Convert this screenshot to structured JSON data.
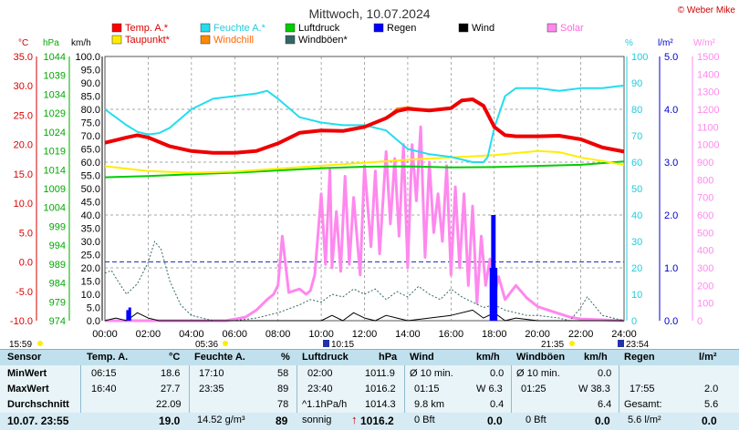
{
  "title": "Mittwoch, 10.07.2024",
  "copyright": "© Weber Mike",
  "legend": [
    {
      "label": "Temp. A.*",
      "color": "#ff0000"
    },
    {
      "label": "Feuchte A.*",
      "color": "#22ddee"
    },
    {
      "label": "Luftdruck",
      "color": "#00cc00"
    },
    {
      "label": "Regen",
      "color": "#0000ff"
    },
    {
      "label": "Wind",
      "color": "#000000"
    },
    {
      "label": "Solar",
      "color": "#ff88ee"
    },
    {
      "label": "Taupunkt*",
      "color": "#ffee00"
    },
    {
      "label": "Windchill",
      "color": "#ff8800"
    },
    {
      "label": "Windböen*",
      "color": "#336666"
    }
  ],
  "axis_units": {
    "temp": "°C",
    "pressure": "hPa",
    "wind": "km/h",
    "humidity": "%",
    "rain": "l/m²",
    "solar": "W/m²"
  },
  "axis_ticks": {
    "temp": [
      "35.0",
      "30.0",
      "25.0",
      "20.0",
      "15.0",
      "10.0",
      "5.0",
      "0.0",
      "-5.0",
      "-10.0"
    ],
    "pressure": [
      "1044",
      "1039",
      "1034",
      "1029",
      "1024",
      "1019",
      "1014",
      "1009",
      "1004",
      "999",
      "994",
      "989",
      "984",
      "979",
      "974"
    ],
    "wind": [
      "100.0",
      "95.0",
      "90.0",
      "85.0",
      "80.0",
      "75.0",
      "70.0",
      "65.0",
      "60.0",
      "55.0",
      "50.0",
      "45.0",
      "40.0",
      "35.0",
      "30.0",
      "25.0",
      "20.0",
      "15.0",
      "10.0",
      "5.0",
      "0.0"
    ],
    "humidity": [
      "100",
      "90",
      "80",
      "70",
      "60",
      "50",
      "40",
      "30",
      "20",
      "10",
      "0"
    ],
    "rain": [
      "5.0",
      "4.0",
      "3.0",
      "2.0",
      "1.0",
      "0.0"
    ],
    "solar": [
      "1500",
      "1400",
      "1300",
      "1200",
      "1100",
      "1000",
      "900",
      "800",
      "700",
      "600",
      "500",
      "400",
      "300",
      "200",
      "100",
      "0"
    ]
  },
  "x_ticks": [
    "00:00",
    "02:00",
    "04:00",
    "06:00",
    "08:00",
    "10:00",
    "12:00",
    "14:00",
    "16:00",
    "18:00",
    "20:00",
    "22:00",
    "24:00"
  ],
  "sun_times": {
    "dawn": "15:59",
    "sunrise": "05:36",
    "noon": "10:15",
    "sunset": "21:35",
    "dusk": "23:54"
  },
  "chart_data": {
    "type": "line",
    "x_unit": "hours",
    "xlim": [
      0,
      24
    ],
    "series": [
      {
        "name": "Temp. A.*",
        "axis": "temp",
        "ylim": [
          -10,
          35
        ],
        "x": [
          0,
          1,
          1.5,
          2,
          3,
          4,
          5,
          6,
          7,
          8,
          9,
          10,
          11,
          12,
          13,
          13.5,
          14,
          15,
          16,
          16.5,
          17,
          17.5,
          18,
          18.5,
          19,
          20,
          21,
          22,
          23,
          24
        ],
        "y": [
          20.3,
          21.2,
          21.6,
          21.2,
          19.7,
          18.9,
          18.6,
          18.6,
          18.9,
          20.2,
          22,
          22.4,
          22.3,
          23,
          24.5,
          25.7,
          26.1,
          25.8,
          26.2,
          27.5,
          27.7,
          26.6,
          23,
          21.6,
          21.4,
          21.4,
          21.5,
          20.9,
          19.5,
          18.8
        ]
      },
      {
        "name": "Windchill",
        "axis": "temp",
        "ylim": [
          -10,
          35
        ],
        "x": [
          0,
          1,
          1.5,
          2,
          3,
          4,
          5,
          6,
          7,
          8,
          9,
          10,
          11,
          12,
          13,
          13.5,
          14,
          15,
          16,
          16.5,
          17,
          17.5,
          18,
          18.5,
          19,
          20,
          21,
          22,
          23,
          24
        ],
        "y": [
          20.3,
          21.2,
          21.6,
          21.2,
          19.7,
          18.9,
          18.6,
          18.6,
          18.9,
          20.2,
          22,
          22.4,
          22.3,
          23,
          24.5,
          26.2,
          26.4,
          25.8,
          26.2,
          27.5,
          27.7,
          26.6,
          23,
          21.6,
          21.4,
          21.4,
          21.5,
          20.9,
          19.5,
          18.8
        ]
      },
      {
        "name": "Taupunkt*",
        "axis": "temp",
        "ylim": [
          -10,
          35
        ],
        "x": [
          0,
          2,
          4,
          6,
          8,
          10,
          12,
          14,
          16,
          18,
          20,
          21,
          22,
          23,
          24
        ],
        "y": [
          16.3,
          15.5,
          15.2,
          15.4,
          15.9,
          16.4,
          16.9,
          17.4,
          17.8,
          18.2,
          18.9,
          18.7,
          17.8,
          17.2,
          16.5
        ]
      },
      {
        "name": "Feuchte A.*",
        "axis": "humidity",
        "ylim": [
          0,
          100
        ],
        "x": [
          0,
          1,
          1.5,
          2,
          2.5,
          3,
          4,
          5,
          6,
          7,
          7.5,
          8,
          9,
          10,
          11,
          12,
          13,
          14,
          15,
          16,
          16.5,
          17,
          17.5,
          17.7,
          18,
          18.5,
          19,
          20,
          21,
          22,
          23,
          24
        ],
        "y": [
          80,
          74,
          71.5,
          70.5,
          71,
          73,
          80,
          84,
          85,
          86,
          87,
          84,
          77,
          75,
          74,
          74,
          72,
          65,
          63,
          62,
          61,
          60,
          60,
          62,
          73,
          85,
          88,
          88,
          87,
          88,
          88,
          89
        ]
      },
      {
        "name": "Luftdruck",
        "axis": "pressure",
        "ylim": [
          974,
          1044
        ],
        "x": [
          0,
          2,
          4,
          6,
          8,
          10,
          12,
          14,
          16,
          18,
          20,
          22,
          24
        ],
        "y": [
          1012.0,
          1012.3,
          1012.8,
          1013.2,
          1013.8,
          1014.4,
          1014.8,
          1014.9,
          1014.6,
          1014.7,
          1015.0,
          1015.3,
          1016.2
        ]
      },
      {
        "name": "Solar",
        "axis": "solar",
        "ylim": [
          0,
          1500
        ],
        "x": [
          0,
          5.6,
          6.5,
          7,
          7.5,
          7.8,
          8,
          8.2,
          8.5,
          9,
          9.3,
          9.5,
          9.7,
          10,
          10.2,
          10.4,
          10.5,
          10.7,
          10.9,
          11.1,
          11.3,
          11.5,
          11.8,
          12,
          12.3,
          12.5,
          12.7,
          13,
          13.2,
          13.4,
          13.6,
          13.8,
          14,
          14.2,
          14.4,
          14.6,
          14.8,
          15,
          15.2,
          15.4,
          15.6,
          15.8,
          16,
          16.2,
          16.4,
          16.6,
          16.8,
          17,
          17.2,
          17.4,
          17.6,
          17.8,
          18,
          18.2,
          18.5,
          19,
          19.5,
          20,
          20.5,
          21,
          21.5,
          22,
          24
        ],
        "y": [
          0,
          0,
          20,
          60,
          120,
          150,
          200,
          480,
          160,
          180,
          150,
          170,
          260,
          720,
          320,
          860,
          300,
          620,
          280,
          820,
          320,
          700,
          260,
          880,
          420,
          850,
          380,
          960,
          550,
          920,
          480,
          1000,
          300,
          1000,
          680,
          1100,
          360,
          900,
          500,
          720,
          450,
          880,
          260,
          760,
          300,
          720,
          200,
          650,
          100,
          480,
          200,
          350,
          140,
          250,
          120,
          200,
          130,
          80,
          60,
          40,
          20,
          10,
          0
        ]
      },
      {
        "name": "Wind",
        "axis": "wind",
        "ylim": [
          0,
          100
        ],
        "x": [
          0,
          0.5,
          1,
          1.5,
          2,
          2.5,
          3,
          4,
          6,
          8,
          10,
          10.5,
          11,
          11.5,
          12,
          12.5,
          13,
          13.5,
          14,
          15,
          16,
          17,
          17.5,
          18,
          18.5,
          19,
          20,
          21,
          22,
          24
        ],
        "y": [
          0,
          1,
          0,
          3,
          1,
          0,
          0,
          0,
          0,
          0,
          0,
          2,
          0,
          3,
          1,
          0,
          2,
          1,
          0,
          1,
          2,
          4,
          1,
          3,
          0,
          1,
          0,
          0,
          0,
          0
        ]
      },
      {
        "name": "Windböen*",
        "axis": "wind",
        "ylim": [
          0,
          100
        ],
        "x": [
          0,
          0.3,
          0.6,
          1,
          1.5,
          2,
          2.3,
          2.6,
          3,
          3.5,
          4,
          5,
          6,
          7,
          8,
          9,
          9.5,
          10,
          10.5,
          11,
          11.5,
          12,
          12.5,
          13,
          13.5,
          14,
          14.5,
          15,
          15.5,
          16,
          16.5,
          17,
          17.5,
          18,
          18.5,
          19,
          19.5,
          20,
          21,
          21.5,
          22,
          22.3,
          22.6,
          23,
          24
        ],
        "y": [
          18,
          19,
          15,
          10,
          14,
          22,
          30,
          27,
          15,
          6,
          2,
          0,
          0,
          1,
          3,
          6,
          8,
          7,
          10,
          9,
          12,
          10,
          12,
          8,
          11,
          9,
          13,
          10,
          8,
          12,
          9,
          7,
          5,
          6,
          4,
          3,
          2,
          2,
          1,
          0,
          5,
          9,
          6,
          2,
          0
        ]
      },
      {
        "name": "Regen",
        "axis": "rain",
        "ylim": [
          0,
          5
        ],
        "x": [
          1.05,
          1.15,
          17.85,
          17.92,
          18.0,
          18.08
        ],
        "y": [
          0.2,
          0.25,
          1.0,
          2.0,
          2.0,
          1.0
        ]
      }
    ]
  },
  "table": {
    "headers": {
      "sensor": "Sensor",
      "temp_title": "Temp. A.",
      "temp_unit": "°C",
      "hum_title": "Feuchte A.",
      "hum_unit": "%",
      "press_title": "Luftdruck",
      "press_unit": "hPa",
      "wind_title": "Wind",
      "wind_unit": "km/h",
      "gust_title": "Windböen",
      "gust_unit": "km/h",
      "rain_title": "Regen",
      "rain_unit": "l/m²"
    },
    "min": {
      "label": "MinWert",
      "temp_time": "06:15",
      "temp_val": "18.6",
      "hum_time": "17:10",
      "hum_val": "58",
      "press_time": "02:00",
      "press_val": "1011.9",
      "wind_time": "Ø 10 min.",
      "wind_val": "0.0",
      "gust_time": "Ø 10 min.",
      "gust_val": "0.0"
    },
    "max": {
      "label": "MaxWert",
      "temp_time": "16:40",
      "temp_val": "27.7",
      "hum_time": "23:35",
      "hum_val": "89",
      "press_time": "23:40",
      "press_val": "1016.2",
      "wind_time": "01:15",
      "wind_val": "W 6.3",
      "gust_time": "01:25",
      "gust_val": "W 38.3",
      "rain_time": "17:55",
      "rain_val": "2.0"
    },
    "avg": {
      "label": "Durchschnitt",
      "temp_val": "22.09",
      "hum_val": "78",
      "press_time": "^1.1hPa/h",
      "press_val": "1014.3",
      "wind_time": "9.8 km",
      "wind_val": "0.4",
      "gust_val": "6.4",
      "rain_time": "Gesamt:",
      "rain_val": "5.6"
    },
    "now": {
      "label": "10.07. 23:55",
      "temp_val": "19.0",
      "hum_time": "14.52 g/m³",
      "hum_val": "89",
      "press_time": "sonnig",
      "press_val": "1016.2",
      "press_arrow": "↑",
      "wind_time": "0 Bft",
      "wind_val": "0.0",
      "gust_time": "0 Bft",
      "gust_val": "0.0",
      "rain_time": "5.6 l/m²",
      "rain_val": "0.0"
    }
  }
}
